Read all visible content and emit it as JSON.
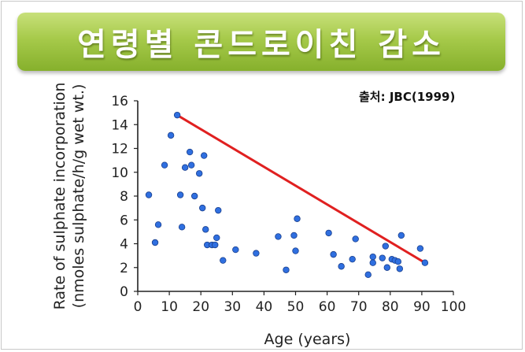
{
  "title": "연령별 콘드로이친 감소",
  "source": "출처: JBC(1999)",
  "colors": {
    "banner": "#a6ca4a",
    "point": "#2f6fe0",
    "trend_line": "#e02020"
  },
  "chart_data": {
    "type": "scatter",
    "xlabel": "Age (years)",
    "ylabel_line1": "Rate of sulphate incorporation",
    "ylabel_line2": "(nmoles sulphate/h/g wet wt.)",
    "xlim": [
      0,
      100
    ],
    "ylim": [
      0,
      16
    ],
    "xticks": [
      0,
      10,
      20,
      30,
      40,
      50,
      60,
      70,
      80,
      90,
      100
    ],
    "yticks": [
      0,
      2,
      4,
      6,
      8,
      10,
      12,
      14,
      16
    ],
    "grid": false,
    "points": [
      [
        3.5,
        8.1
      ],
      [
        5.5,
        4.1
      ],
      [
        6.5,
        5.6
      ],
      [
        8.5,
        10.6
      ],
      [
        10.5,
        13.1
      ],
      [
        12.5,
        14.8
      ],
      [
        13.5,
        8.1
      ],
      [
        14,
        5.4
      ],
      [
        15,
        10.4
      ],
      [
        16.5,
        11.7
      ],
      [
        17,
        10.6
      ],
      [
        18,
        8.0
      ],
      [
        19.5,
        9.9
      ],
      [
        20.5,
        7.0
      ],
      [
        21,
        11.4
      ],
      [
        21.5,
        5.2
      ],
      [
        22,
        3.9
      ],
      [
        23.5,
        3.9
      ],
      [
        24.5,
        3.9
      ],
      [
        25,
        4.5
      ],
      [
        25.5,
        6.8
      ],
      [
        27,
        2.6
      ],
      [
        31,
        3.5
      ],
      [
        37.5,
        3.2
      ],
      [
        44.5,
        4.6
      ],
      [
        47,
        1.8
      ],
      [
        49.5,
        4.7
      ],
      [
        50,
        3.4
      ],
      [
        50.5,
        6.1
      ],
      [
        60.5,
        4.9
      ],
      [
        62,
        3.1
      ],
      [
        64.5,
        2.1
      ],
      [
        68,
        2.7
      ],
      [
        69,
        4.4
      ],
      [
        73,
        1.4
      ],
      [
        74.5,
        2.9
      ],
      [
        74.5,
        2.4
      ],
      [
        77.5,
        2.8
      ],
      [
        78.5,
        3.8
      ],
      [
        79,
        2.0
      ],
      [
        80.5,
        2.7
      ],
      [
        81.5,
        2.6
      ],
      [
        82.5,
        2.5
      ],
      [
        83,
        1.9
      ],
      [
        83.5,
        4.7
      ],
      [
        89.5,
        3.6
      ],
      [
        91,
        2.4
      ]
    ],
    "trend_line": [
      [
        12.5,
        14.8
      ],
      [
        91,
        2.4
      ]
    ]
  }
}
